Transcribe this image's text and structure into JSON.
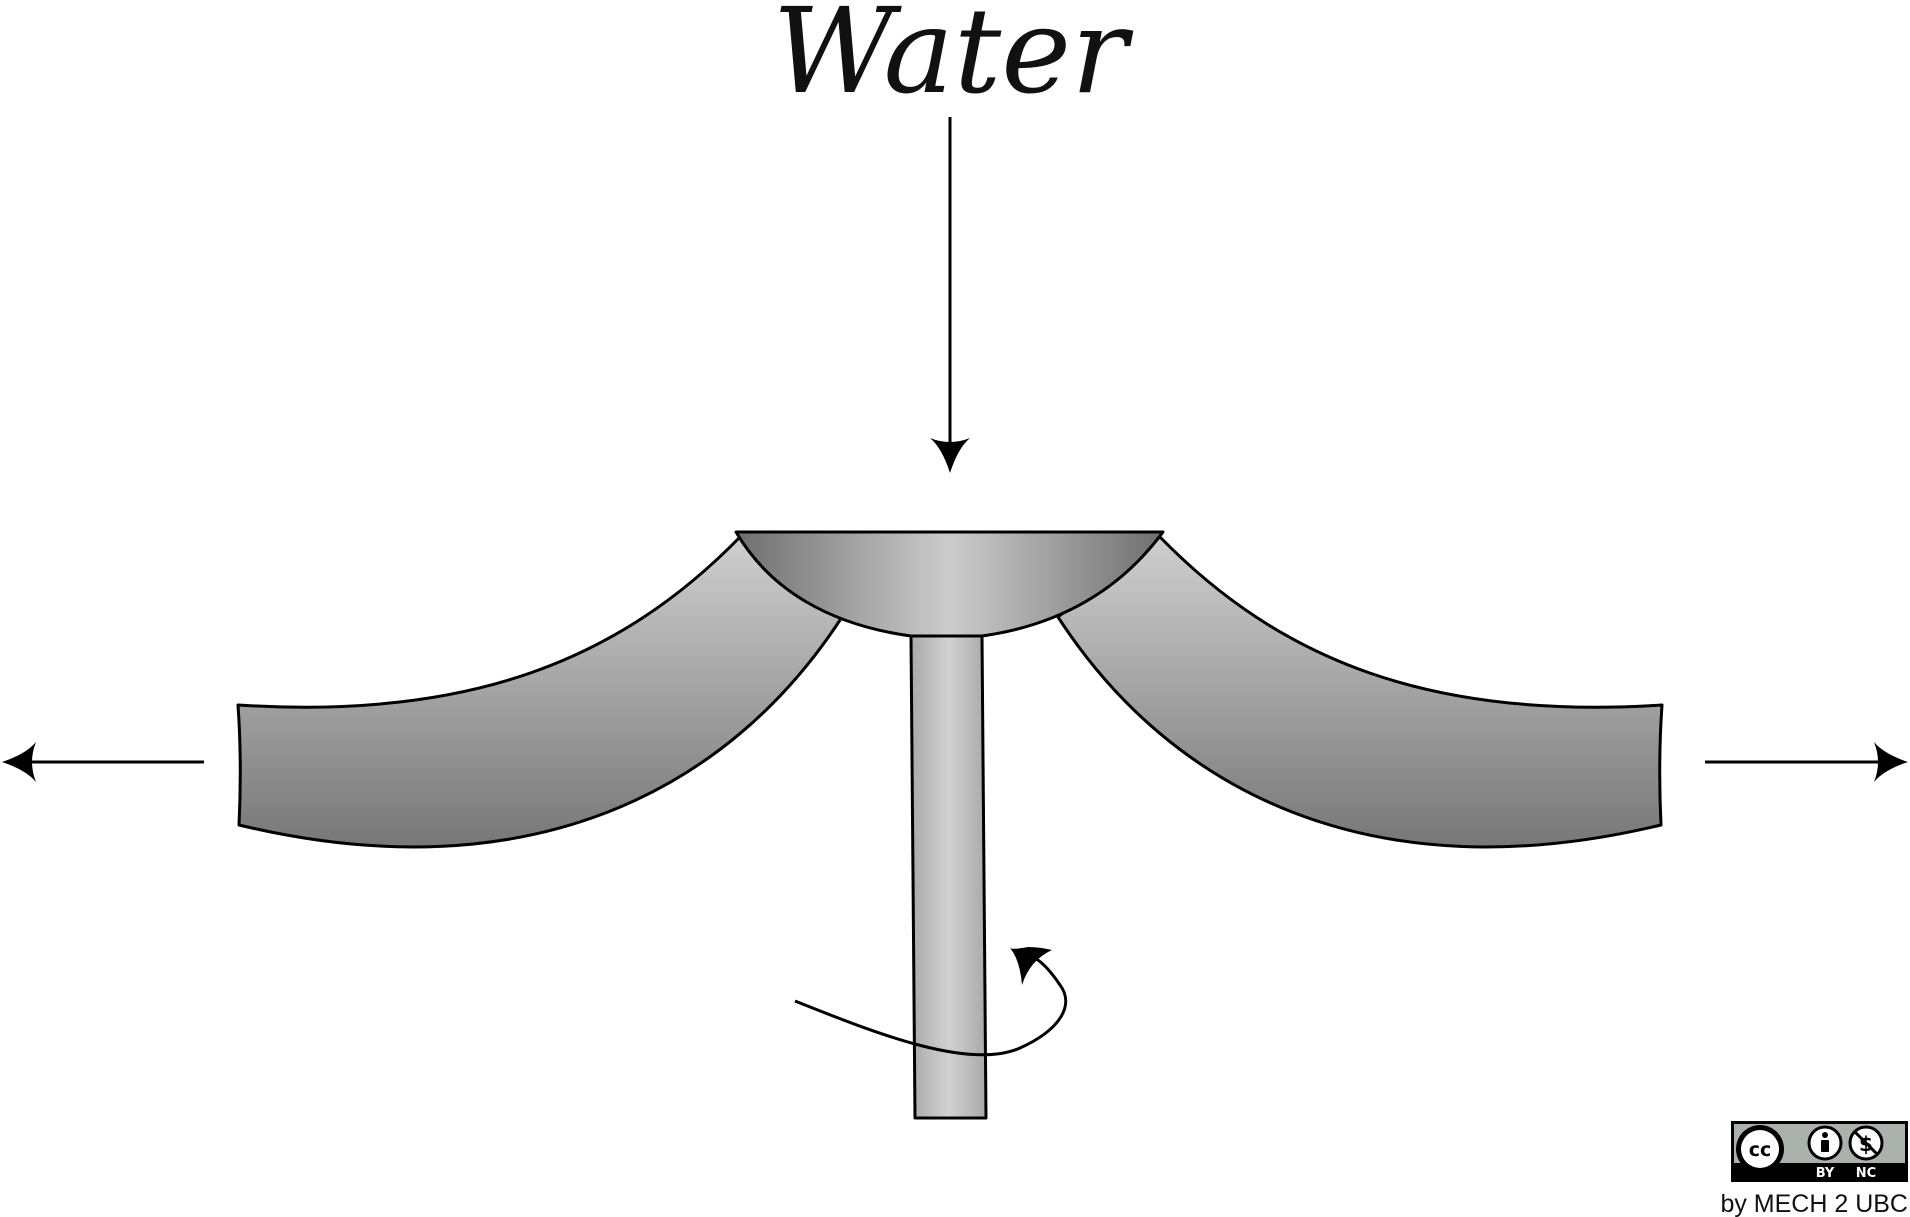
{
  "title": "Water",
  "license": {
    "cc": "cc",
    "by": "BY",
    "nc": "NC",
    "credit": "by MECH 2 UBC"
  },
  "icons": {
    "inflow": "down-arrow-icon",
    "outflow_left": "left-arrow-icon",
    "outflow_right": "right-arrow-icon",
    "rotation": "rotation-arrow-icon"
  },
  "colors": {
    "stroke": "#000000",
    "metal_light": "#c8c8c8",
    "metal_dark": "#7a7a7a"
  }
}
